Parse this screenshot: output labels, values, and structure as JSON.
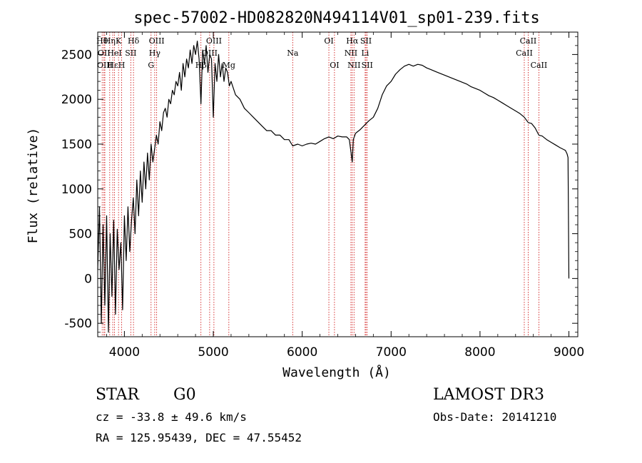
{
  "chart_data": {
    "type": "line",
    "title": "spec-57002-HD082820N494114V01_sp01-239.fits",
    "xlabel": "Wavelength (Å)",
    "ylabel": "Flux (relative)",
    "xlim": [
      3700,
      9100
    ],
    "ylim": [
      -650,
      2750
    ],
    "xticks": [
      4000,
      5000,
      6000,
      7000,
      8000,
      9000
    ],
    "yticks": [
      -500,
      0,
      500,
      1000,
      1500,
      2000,
      2500
    ],
    "grid": false,
    "series": [
      {
        "name": "flux",
        "x": [
          3700,
          3720,
          3740,
          3760,
          3780,
          3800,
          3820,
          3840,
          3860,
          3880,
          3900,
          3920,
          3940,
          3960,
          3980,
          4000,
          4020,
          4040,
          4060,
          4080,
          4100,
          4120,
          4140,
          4160,
          4180,
          4200,
          4220,
          4240,
          4260,
          4280,
          4300,
          4320,
          4340,
          4360,
          4380,
          4400,
          4420,
          4440,
          4460,
          4480,
          4500,
          4520,
          4540,
          4560,
          4580,
          4600,
          4620,
          4640,
          4660,
          4680,
          4700,
          4720,
          4740,
          4760,
          4780,
          4800,
          4820,
          4840,
          4861,
          4880,
          4900,
          4920,
          4940,
          4960,
          4980,
          5000,
          5020,
          5040,
          5060,
          5080,
          5100,
          5120,
          5140,
          5160,
          5180,
          5200,
          5250,
          5300,
          5350,
          5400,
          5450,
          5500,
          5550,
          5600,
          5650,
          5700,
          5750,
          5800,
          5850,
          5893,
          5950,
          6000,
          6050,
          6100,
          6150,
          6200,
          6250,
          6300,
          6350,
          6400,
          6450,
          6500,
          6530,
          6550,
          6563,
          6575,
          6600,
          6650,
          6700,
          6750,
          6800,
          6850,
          6900,
          6950,
          7000,
          7050,
          7100,
          7150,
          7200,
          7250,
          7300,
          7350,
          7400,
          7450,
          7500,
          7550,
          7600,
          7650,
          7700,
          7750,
          7800,
          7850,
          7900,
          7950,
          8000,
          8050,
          8100,
          8150,
          8200,
          8250,
          8300,
          8350,
          8400,
          8450,
          8498,
          8542,
          8580,
          8620,
          8662,
          8700,
          8750,
          8800,
          8850,
          8900,
          8940,
          8960,
          8980,
          8990,
          9000
        ],
        "y": [
          100,
          800,
          -500,
          600,
          -300,
          700,
          -600,
          500,
          -200,
          650,
          -400,
          550,
          100,
          400,
          -350,
          700,
          200,
          800,
          300,
          650,
          900,
          500,
          1100,
          700,
          1200,
          850,
          1300,
          1000,
          1400,
          1100,
          1500,
          1300,
          1450,
          1600,
          1500,
          1750,
          1650,
          1850,
          1900,
          1800,
          2000,
          1950,
          2100,
          2050,
          2200,
          2150,
          2300,
          2100,
          2400,
          2250,
          2450,
          2350,
          2550,
          2400,
          2600,
          2500,
          2650,
          2450,
          1950,
          2550,
          2400,
          2600,
          2300,
          2500,
          2450,
          1800,
          2400,
          2200,
          2500,
          2250,
          2400,
          2200,
          2350,
          2300,
          2150,
          2200,
          2050,
          2000,
          1900,
          1850,
          1800,
          1750,
          1700,
          1650,
          1650,
          1600,
          1600,
          1550,
          1550,
          1480,
          1500,
          1480,
          1500,
          1510,
          1500,
          1530,
          1560,
          1580,
          1560,
          1590,
          1580,
          1580,
          1550,
          1400,
          1300,
          1550,
          1620,
          1660,
          1710,
          1760,
          1800,
          1900,
          2050,
          2150,
          2200,
          2280,
          2330,
          2370,
          2390,
          2370,
          2390,
          2380,
          2350,
          2330,
          2310,
          2290,
          2270,
          2250,
          2230,
          2210,
          2190,
          2170,
          2140,
          2120,
          2100,
          2070,
          2040,
          2020,
          1990,
          1960,
          1930,
          1900,
          1870,
          1840,
          1800,
          1740,
          1730,
          1680,
          1600,
          1590,
          1550,
          1520,
          1490,
          1460,
          1440,
          1430,
          1390,
          1350,
          0
        ]
      }
    ],
    "lines": [
      {
        "x": 3750,
        "row": 0,
        "label": "Hθ"
      },
      {
        "x": 3770,
        "row": 1,
        "label": "OII"
      },
      {
        "x": 3780,
        "row": 2,
        "label": "OIII"
      },
      {
        "x": 3835,
        "row": 0,
        "label": "Hη"
      },
      {
        "x": 3869,
        "row": 2,
        "label": "Hε"
      },
      {
        "x": 3889,
        "row": 1,
        "label": "HeI"
      },
      {
        "x": 3934,
        "row": 0,
        "label": "K"
      },
      {
        "x": 3969,
        "row": 2,
        "label": "H"
      },
      {
        "x": 4072,
        "row": 1,
        "label": "SII"
      },
      {
        "x": 4102,
        "row": 0,
        "label": "Hδ"
      },
      {
        "x": 4300,
        "row": 2,
        "label": "G"
      },
      {
        "x": 4341,
        "row": 1,
        "label": "Hγ"
      },
      {
        "x": 4363,
        "row": 0,
        "label": "OIII"
      },
      {
        "x": 4861,
        "row": 2,
        "label": "Hβ"
      },
      {
        "x": 4959,
        "row": 1,
        "label": "OIII"
      },
      {
        "x": 5007,
        "row": 0,
        "label": "OIII"
      },
      {
        "x": 5175,
        "row": 2,
        "label": "Mg"
      },
      {
        "x": 5893,
        "row": 1,
        "label": "Na"
      },
      {
        "x": 6300,
        "row": 0,
        "label": "OI"
      },
      {
        "x": 6363,
        "row": 2,
        "label": "OI"
      },
      {
        "x": 6548,
        "row": 1,
        "label": "NII"
      },
      {
        "x": 6563,
        "row": 0,
        "label": "Hα"
      },
      {
        "x": 6583,
        "row": 2,
        "label": "NII"
      },
      {
        "x": 6708,
        "row": 1,
        "label": "Li"
      },
      {
        "x": 6717,
        "row": 0,
        "label": "SII"
      },
      {
        "x": 6731,
        "row": 2,
        "label": "SII"
      },
      {
        "x": 8498,
        "row": 1,
        "label": "CaII"
      },
      {
        "x": 8542,
        "row": 0,
        "label": "CaII"
      },
      {
        "x": 8662,
        "row": 2,
        "label": "CaII"
      }
    ]
  },
  "info": {
    "class_label": "STAR",
    "subclass": "G0",
    "survey": "LAMOST DR3",
    "cz": "cz = -33.8 ± 49.6 km/s",
    "obs_date": "Obs-Date: 20141210",
    "radec": "RA = 125.95439, DEC =  47.55452"
  },
  "colors": {
    "line": "#000000",
    "marker": "#cc0000"
  }
}
